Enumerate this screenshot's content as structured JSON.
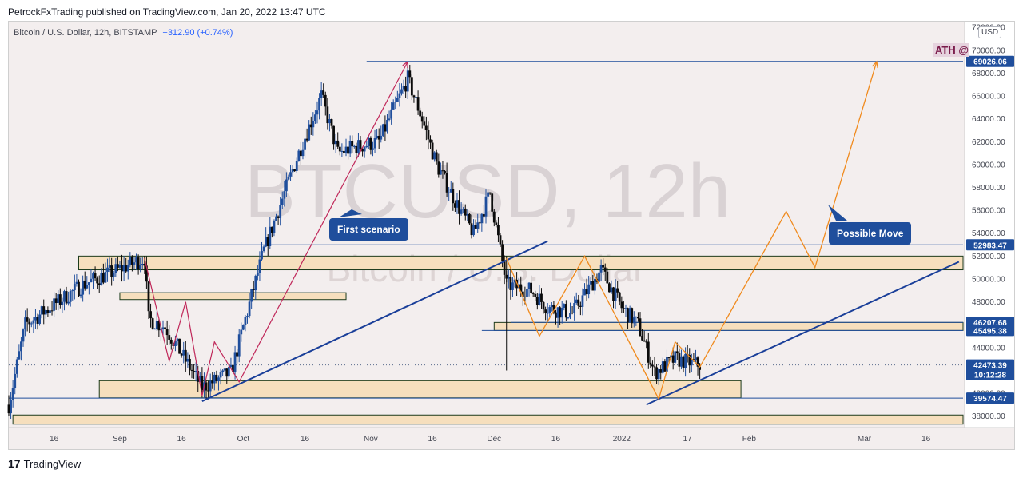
{
  "header": {
    "published_by": "PetrockFxTrading published on TradingView.com, Jan 20, 2022 13:47 UTC"
  },
  "symbol": {
    "description": "Bitcoin / U.S. Dollar, 12h, BITSTAMP",
    "change": "+312.90 (+0.74%)"
  },
  "watermark": {
    "ticker": "BTCUSD, 12h",
    "name": "Bitcoin / U.S. Dollar"
  },
  "currency": "USD",
  "ath_label": "ATH @",
  "callouts": {
    "first_scenario": "First scenario",
    "possible_move": "Possible Move"
  },
  "footer": {
    "brand": "TradingView"
  },
  "colors": {
    "background": "#f3eeee",
    "up_candle": "#1f4e9c",
    "down_candle": "#0b0b0b",
    "zone_fill": "#f6dfbd",
    "zone_border": "#1b3a1b",
    "level_line": "#1f4e9c",
    "trendline": "#1a3f99",
    "scenario_line": "#c0285a",
    "projection_line": "#f08a1d",
    "price_tag": "#1f4e9c"
  },
  "chart_data": {
    "type": "candlestick",
    "title": "Bitcoin / U.S. Dollar, 12h, BITSTAMP",
    "y_axis": {
      "ticks": [
        "72000.00",
        "70000.00",
        "68000.00",
        "66000.00",
        "64000.00",
        "62000.00",
        "60000.00",
        "58000.00",
        "56000.00",
        "54000.00",
        "52000.00",
        "50000.00",
        "48000.00",
        "46000.00",
        "44000.00",
        "42000.00",
        "40000.00",
        "38000.00"
      ],
      "range": [
        37000,
        72500
      ]
    },
    "x_axis": {
      "ticks": [
        "16",
        "Sep",
        "16",
        "Oct",
        "16",
        "Nov",
        "16",
        "Dec",
        "16",
        "2022",
        "17",
        "Feb",
        "Mar",
        "16"
      ],
      "range_days": [
        "2021-08-05",
        "2022-03-25"
      ]
    },
    "price_labels": [
      {
        "value": "69026.06",
        "price": 69026.06
      },
      {
        "value": "52983.47",
        "price": 52983.47
      },
      {
        "value": "46207.68",
        "price": 46207.68
      },
      {
        "value": "45495.38",
        "price": 45495.38
      },
      {
        "value": "42473.39",
        "price": 42473.39,
        "sub": "10:12:28",
        "current": true
      },
      {
        "value": "39574.47",
        "price": 39574.47
      }
    ],
    "horizontal_levels": [
      {
        "price": 69026.06,
        "from": "2021-10-31",
        "to": "2022-03-25"
      },
      {
        "price": 52983.47,
        "from": "2021-09-01",
        "to": "2022-03-25"
      },
      {
        "price": 46207.68,
        "from": "2021-12-05",
        "to": "2022-03-25"
      },
      {
        "price": 45495.38,
        "from": "2021-11-28",
        "to": "2022-03-25"
      },
      {
        "price": 39574.47,
        "from": "2021-08-05",
        "to": "2022-03-25"
      }
    ],
    "zones": [
      {
        "top": 52000,
        "bottom": 50800,
        "from": "2021-08-22",
        "to": "2022-03-25"
      },
      {
        "top": 48800,
        "bottom": 48200,
        "from": "2021-09-01",
        "to": "2021-10-26"
      },
      {
        "top": 46200,
        "bottom": 45500,
        "from": "2021-12-01",
        "to": "2022-03-25"
      },
      {
        "top": 41100,
        "bottom": 39600,
        "from": "2021-08-27",
        "to": "2022-01-30"
      },
      {
        "top": 38100,
        "bottom": 37300,
        "from": "2021-08-06",
        "to": "2022-03-25"
      }
    ],
    "trendlines": [
      {
        "from": [
          "2021-09-21",
          39300
        ],
        "to": [
          "2021-12-14",
          53300
        ]
      },
      {
        "from": [
          "2022-01-07",
          39000
        ],
        "to": [
          "2022-03-24",
          51500
        ]
      }
    ],
    "scenario_path": [
      [
        "2021-09-07",
        51800
      ],
      [
        "2021-09-13",
        42800
      ],
      [
        "2021-09-17",
        48000
      ],
      [
        "2021-09-21",
        39800
      ],
      [
        "2021-09-24",
        44500
      ],
      [
        "2021-09-30",
        41000
      ],
      [
        "2021-11-10",
        69000
      ]
    ],
    "projection_path": [
      [
        "2021-12-04",
        51800
      ],
      [
        "2021-12-12",
        45000
      ],
      [
        "2021-12-23",
        52000
      ],
      [
        "2022-01-10",
        39500
      ],
      [
        "2022-01-14",
        44500
      ],
      [
        "2022-01-20",
        42300
      ],
      [
        "2022-02-10",
        55900
      ],
      [
        "2022-02-17",
        51000
      ],
      [
        "2022-03-04",
        69000
      ]
    ],
    "anchors": [
      {
        "date": "2021-08-05",
        "price": 39000
      },
      {
        "date": "2021-08-09",
        "price": 46000
      },
      {
        "date": "2021-08-23",
        "price": 49500
      },
      {
        "date": "2021-09-07",
        "price": 51800
      },
      {
        "date": "2021-09-08",
        "price": 46500
      },
      {
        "date": "2021-09-12",
        "price": 45800
      },
      {
        "date": "2021-09-21",
        "price": 40500
      },
      {
        "date": "2021-09-28",
        "price": 41800
      },
      {
        "date": "2021-10-06",
        "price": 52500
      },
      {
        "date": "2021-10-15",
        "price": 61500
      },
      {
        "date": "2021-10-20",
        "price": 66000
      },
      {
        "date": "2021-10-24",
        "price": 61000
      },
      {
        "date": "2021-10-28",
        "price": 61500
      },
      {
        "date": "2021-11-03",
        "price": 62000
      },
      {
        "date": "2021-11-10",
        "price": 67500
      },
      {
        "date": "2021-11-13",
        "price": 64500
      },
      {
        "date": "2021-11-17",
        "price": 60000
      },
      {
        "date": "2021-11-22",
        "price": 56500
      },
      {
        "date": "2021-11-26",
        "price": 54000
      },
      {
        "date": "2021-11-30",
        "price": 57500
      },
      {
        "date": "2021-12-04",
        "price": 49500
      },
      {
        "date": "2021-12-10",
        "price": 49000
      },
      {
        "date": "2021-12-14",
        "price": 47500
      },
      {
        "date": "2021-12-20",
        "price": 47000
      },
      {
        "date": "2021-12-27",
        "price": 50800
      },
      {
        "date": "2022-01-01",
        "price": 47500
      },
      {
        "date": "2022-01-05",
        "price": 46000
      },
      {
        "date": "2022-01-09",
        "price": 41800
      },
      {
        "date": "2022-01-14",
        "price": 43000
      },
      {
        "date": "2022-01-20",
        "price": 42473
      }
    ]
  }
}
